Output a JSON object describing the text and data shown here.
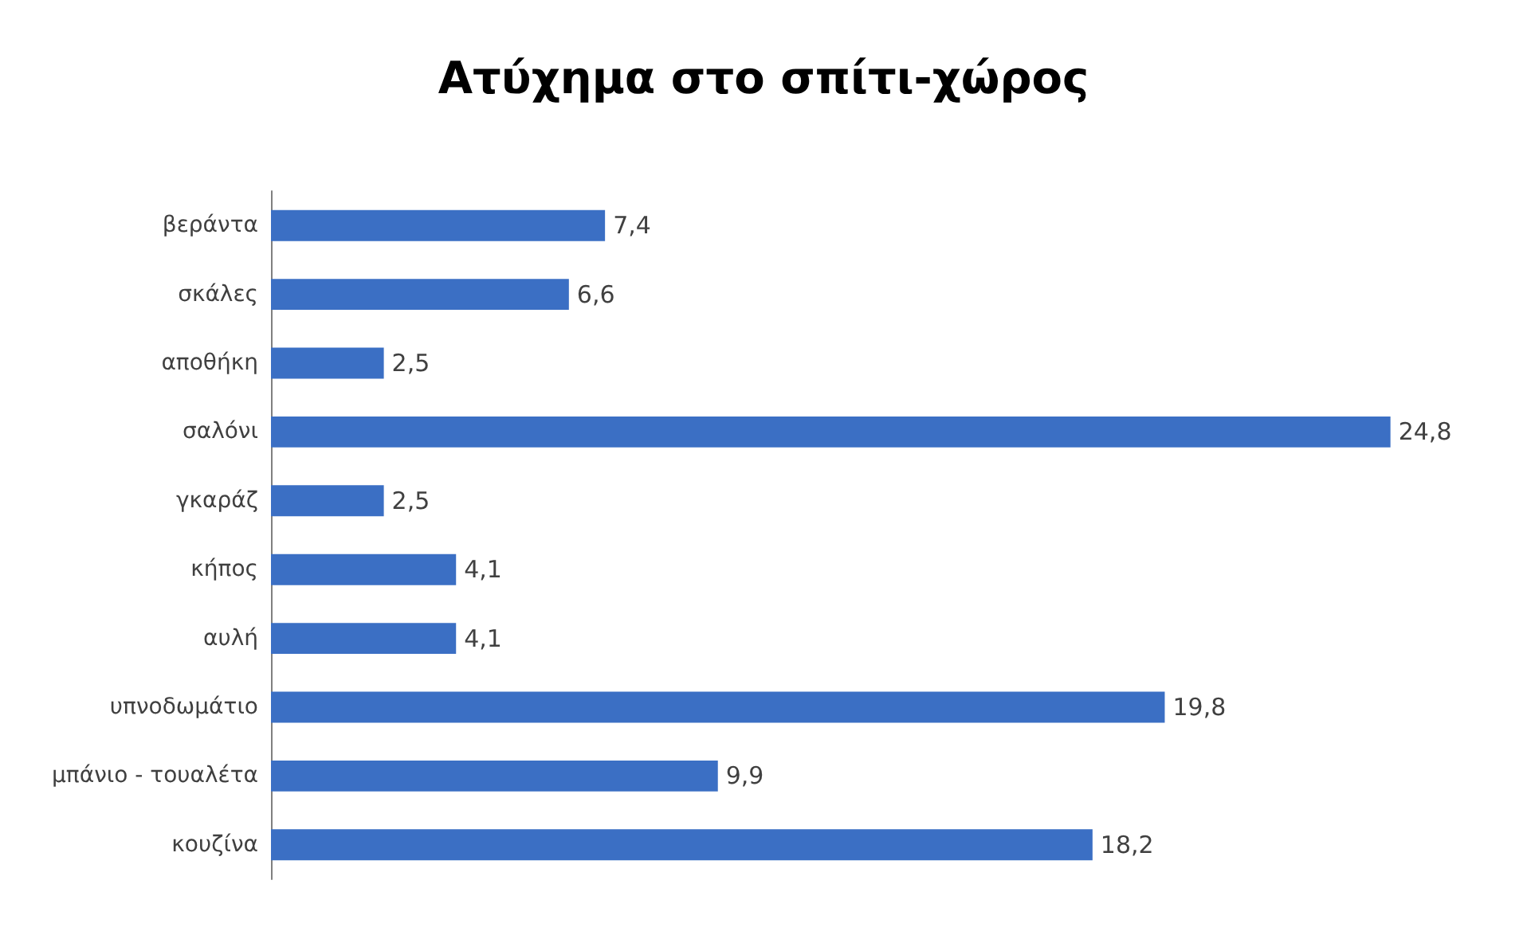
{
  "chart_data": {
    "type": "bar",
    "orientation": "horizontal",
    "title": "Ατύχημα στο σπίτι-χώρος",
    "categories": [
      "βεράντα",
      "σκάλες",
      "αποθήκη",
      "σαλόνι",
      "γκαράζ",
      "κήπος",
      "αυλή",
      "υπνοδωμάτιο",
      "μπάνιο - τουαλέτα",
      "κουζίνα"
    ],
    "values": [
      7.4,
      6.6,
      2.5,
      24.8,
      2.5,
      4.1,
      4.1,
      19.8,
      9.9,
      18.2
    ],
    "value_labels": [
      "7,4",
      "6,6",
      "2,5",
      "24,8",
      "2,5",
      "4,1",
      "4,1",
      "19,8",
      "9,9",
      "18,2"
    ],
    "color": "#3b6fc4"
  }
}
